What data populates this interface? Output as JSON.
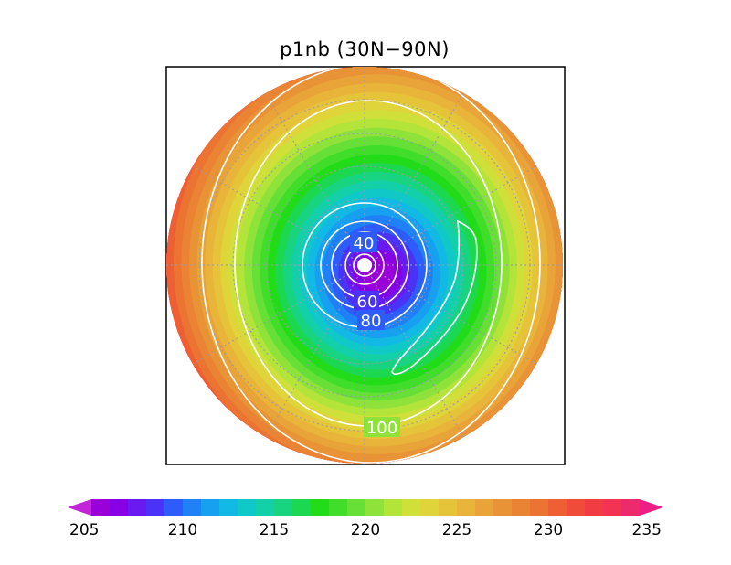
{
  "title": "p1nb (30N−90N)",
  "contour_labels": [
    "40",
    "60",
    "80",
    "100"
  ],
  "colorbar": {
    "ticks": [
      "205",
      "210",
      "215",
      "220",
      "225",
      "230",
      "235"
    ],
    "min": 205,
    "max": 235,
    "step": 1,
    "colors": [
      "#9a00d8",
      "#8700e4",
      "#6a1af0",
      "#4a33f6",
      "#2d5cfb",
      "#2080f5",
      "#17a0f0",
      "#12b9e4",
      "#10c8c8",
      "#14d0a8",
      "#18d480",
      "#1cd850",
      "#22dc1a",
      "#40de2a",
      "#66df36",
      "#8ee23a",
      "#b2e43a",
      "#d0e03a",
      "#dfd43a",
      "#e6c43a",
      "#e8b43a",
      "#e8a438",
      "#e89436",
      "#ea8434",
      "#ec7432",
      "#ee6034",
      "#f04c3a",
      "#f23c44",
      "#f23452",
      "#ec2a6c"
    ],
    "under_color": "#c026d8",
    "over_color": "#ee1e84"
  }
}
